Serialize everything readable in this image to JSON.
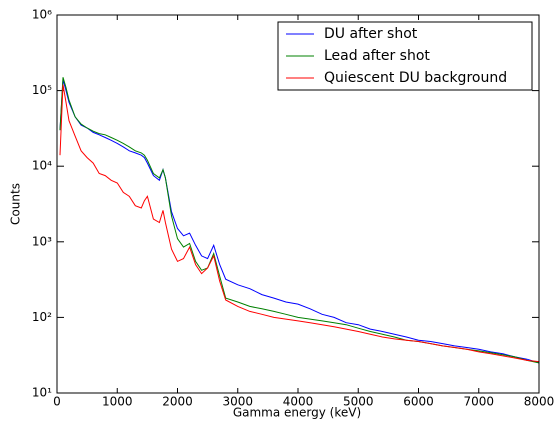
{
  "chart_data": {
    "type": "line",
    "x_label": "Gamma energy (keV)",
    "y_label": "Counts",
    "log_y": true,
    "legend": "upper right",
    "xlim": [
      0,
      8000
    ],
    "xticks": [
      0,
      1000,
      2000,
      3000,
      4000,
      5000,
      6000,
      7000,
      8000
    ],
    "ylim": [
      10,
      1000000
    ],
    "yticks": [
      {
        "value": 10,
        "label": "10¹"
      },
      {
        "value": 100,
        "label": "10²"
      },
      {
        "value": 1000,
        "label": "10³"
      },
      {
        "value": 10000,
        "label": "10⁴"
      },
      {
        "value": 100000,
        "label": "10⁵"
      },
      {
        "value": 1000000,
        "label": "10⁶"
      }
    ],
    "x": [
      50,
      100,
      150,
      200,
      300,
      400,
      500,
      600,
      700,
      800,
      900,
      1000,
      1100,
      1200,
      1300,
      1400,
      1450,
      1500,
      1600,
      1700,
      1760,
      1800,
      1900,
      2000,
      2100,
      2200,
      2300,
      2400,
      2500,
      2600,
      2700,
      2800,
      3000,
      3200,
      3400,
      3600,
      3800,
      4000,
      4200,
      4400,
      4600,
      4800,
      5000,
      5200,
      5400,
      5600,
      5800,
      6000,
      6200,
      6400,
      6600,
      6800,
      7000,
      7200,
      7400,
      7600,
      7800,
      8000
    ],
    "series": [
      {
        "name": "DU after shot",
        "color": "#0000ff",
        "values": [
          30000,
          140000,
          100000,
          70000,
          45000,
          35000,
          32000,
          28000,
          26000,
          24000,
          22000,
          20000,
          18000,
          16000,
          15000,
          14000,
          13000,
          11000,
          7500,
          6500,
          9000,
          7000,
          2500,
          1500,
          1200,
          1300,
          900,
          650,
          600,
          900,
          500,
          320,
          270,
          240,
          200,
          180,
          160,
          150,
          130,
          110,
          100,
          85,
          80,
          70,
          65,
          60,
          55,
          50,
          48,
          45,
          42,
          40,
          38,
          35,
          33,
          30,
          28,
          25
        ]
      },
      {
        "name": "Lead after shot",
        "color": "#008000",
        "values": [
          30000,
          150000,
          110000,
          75000,
          45000,
          36000,
          32000,
          29000,
          27000,
          26000,
          24000,
          22000,
          20000,
          18000,
          16000,
          15000,
          14000,
          12000,
          8000,
          7000,
          9000,
          7000,
          2200,
          1100,
          850,
          950,
          550,
          420,
          450,
          700,
          350,
          180,
          160,
          140,
          130,
          120,
          110,
          100,
          95,
          90,
          85,
          80,
          72,
          65,
          60,
          55,
          50,
          48,
          45,
          42,
          40,
          38,
          36,
          34,
          32,
          30,
          27,
          25
        ]
      },
      {
        "name": "Quiescent DU background",
        "color": "#ff0000",
        "values": [
          14000,
          120000,
          70000,
          40000,
          25000,
          16000,
          13000,
          11000,
          8000,
          7500,
          6500,
          6000,
          4500,
          4000,
          3000,
          2800,
          3500,
          4000,
          2000,
          1800,
          2600,
          1800,
          800,
          550,
          600,
          850,
          500,
          380,
          450,
          650,
          300,
          170,
          140,
          120,
          110,
          100,
          95,
          90,
          85,
          80,
          75,
          70,
          65,
          60,
          55,
          52,
          50,
          48,
          45,
          42,
          40,
          38,
          35,
          33,
          31,
          29,
          27,
          26
        ]
      }
    ]
  }
}
